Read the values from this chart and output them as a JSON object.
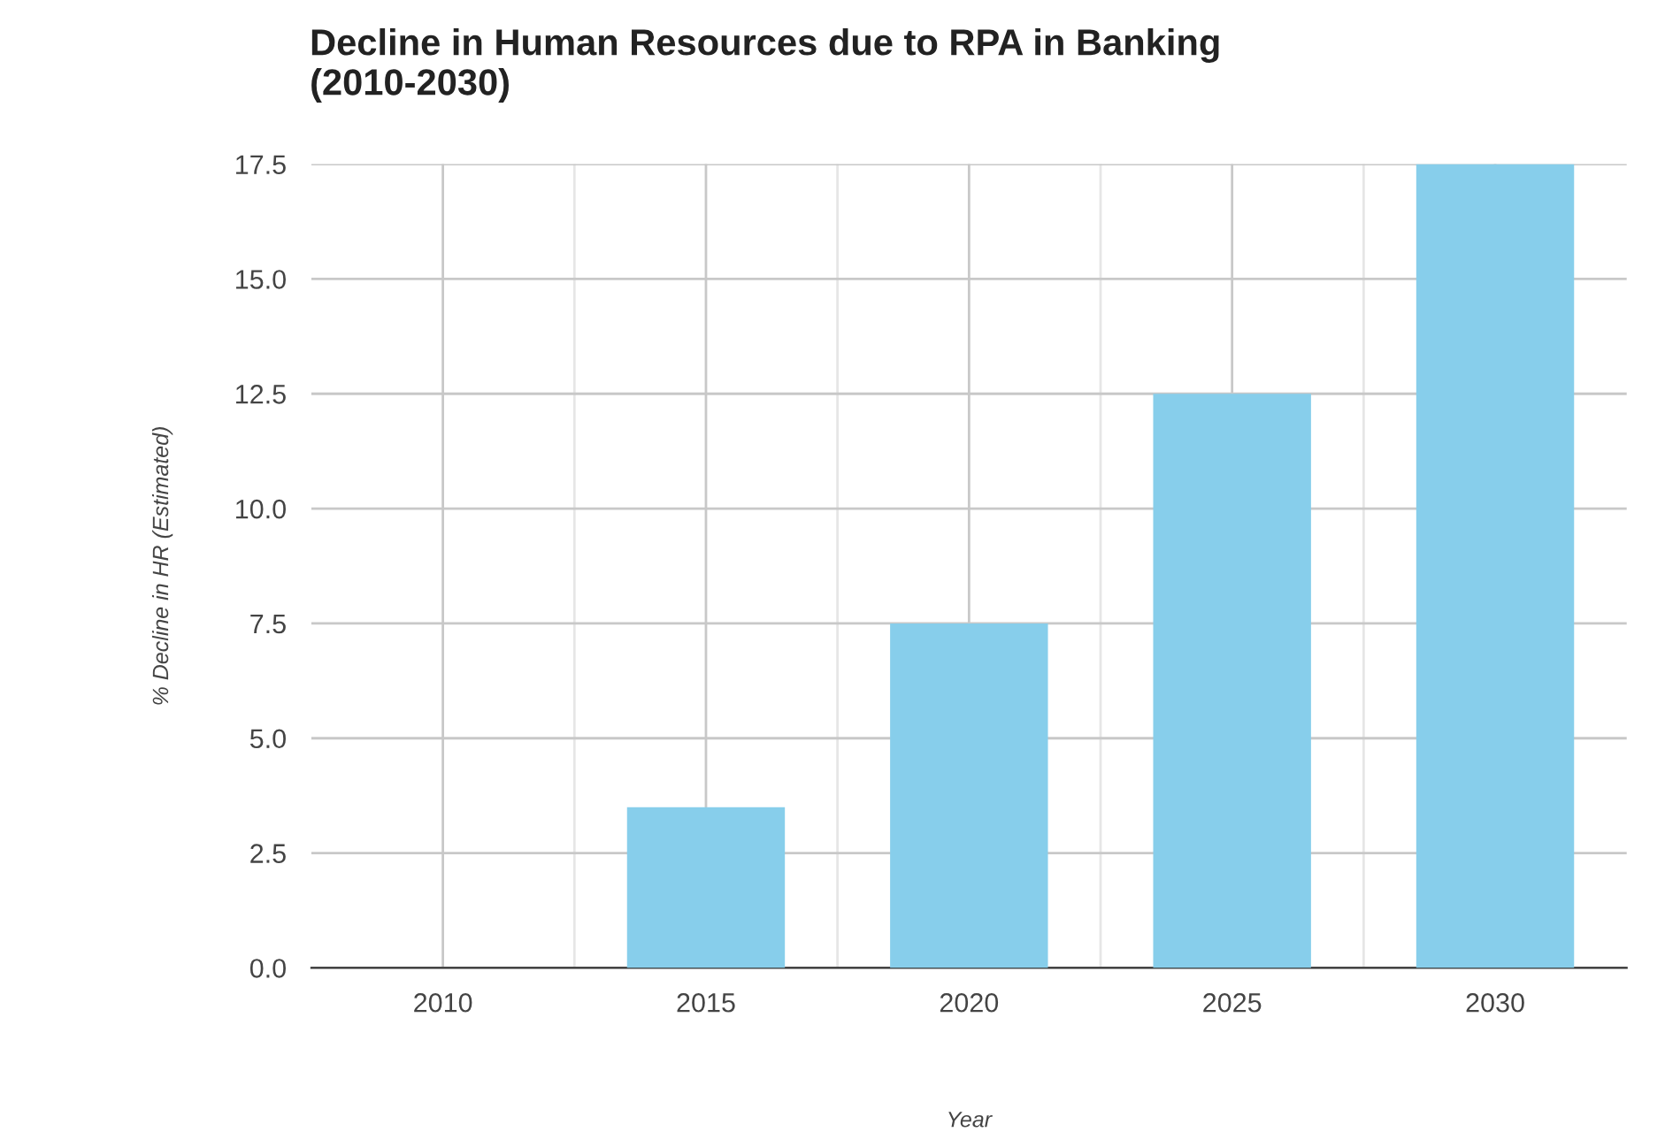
{
  "chart_data": {
    "type": "bar",
    "title": "Decline in Human Resources due to RPA in Banking\n(2010-2030)",
    "xlabel": "Year",
    "ylabel": "% Decline in HR (Estimated)",
    "categories": [
      "2010",
      "2015",
      "2020",
      "2025",
      "2030"
    ],
    "values": [
      0,
      3.5,
      7.5,
      12.5,
      17.5
    ],
    "color": "#87ceeb",
    "ylim": [
      0,
      17.5
    ],
    "yticks": [
      {
        "value": 0,
        "label": "0.0"
      },
      {
        "value": 2.5,
        "label": "2.5"
      },
      {
        "value": 5,
        "label": "5.0"
      },
      {
        "value": 7.5,
        "label": "7.5"
      },
      {
        "value": 10,
        "label": "10.0"
      },
      {
        "value": 12.5,
        "label": "12.5"
      },
      {
        "value": 15,
        "label": "15.0"
      },
      {
        "value": 17.5,
        "label": "17.5"
      }
    ],
    "grid": true
  }
}
